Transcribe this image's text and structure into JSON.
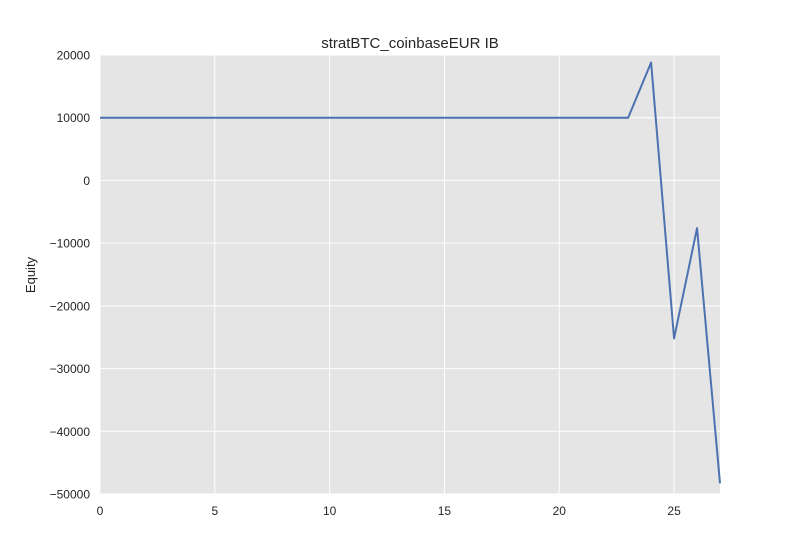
{
  "chart_data": {
    "type": "line",
    "title": "stratBTC_coinbaseEUR IB",
    "xlabel": "",
    "ylabel": "Equity",
    "xlim": [
      0,
      27
    ],
    "ylim": [
      -50000,
      20000
    ],
    "xticks": [
      0,
      5,
      10,
      15,
      20,
      25
    ],
    "xtick_labels": [
      "0",
      "5",
      "10",
      "15",
      "20",
      "25"
    ],
    "yticks": [
      20000,
      10000,
      0,
      -10000,
      -20000,
      -30000,
      -40000,
      -50000
    ],
    "ytick_labels": [
      "20000",
      "10000",
      "0",
      "−10000",
      "−20000",
      "−30000",
      "−40000",
      "−50000"
    ],
    "grid": true,
    "background": "#e5e5e5",
    "grid_color": "#ffffff",
    "line_color": "#4c72b0",
    "series": [
      {
        "x": [
          0,
          1,
          2,
          3,
          4,
          5,
          6,
          7,
          8,
          9,
          10,
          11,
          12,
          13,
          14,
          15,
          16,
          17,
          18,
          19,
          20,
          21,
          22,
          23,
          24,
          25,
          26,
          27
        ],
        "values": [
          10000,
          10000,
          10000,
          10000,
          10000,
          10000,
          10000,
          10000,
          10000,
          10000,
          10000,
          10000,
          10000,
          10000,
          10000,
          10000,
          10000,
          10000,
          10000,
          10000,
          10000,
          10000,
          10000,
          10000,
          18800,
          -25200,
          -7600,
          -48300
        ]
      }
    ]
  }
}
